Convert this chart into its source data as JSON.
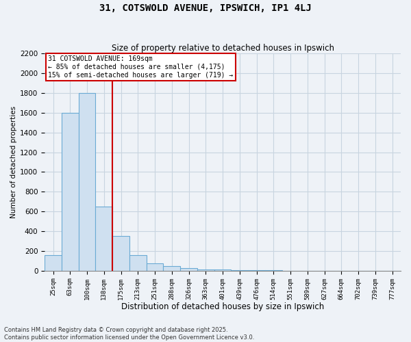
{
  "title": "31, COTSWOLD AVENUE, IPSWICH, IP1 4LJ",
  "subtitle": "Size of property relative to detached houses in Ipswich",
  "xlabel": "Distribution of detached houses by size in Ipswich",
  "ylabel": "Number of detached properties",
  "annotation_title": "31 COTSWOLD AVENUE: 169sqm",
  "annotation_line1": "← 85% of detached houses are smaller (4,175)",
  "annotation_line2": "15% of semi-detached houses are larger (719) →",
  "footer_line1": "Contains HM Land Registry data © Crown copyright and database right 2025.",
  "footer_line2": "Contains public sector information licensed under the Open Government Licence v3.0.",
  "bins": [
    "25sqm",
    "63sqm",
    "100sqm",
    "138sqm",
    "175sqm",
    "213sqm",
    "251sqm",
    "288sqm",
    "326sqm",
    "363sqm",
    "401sqm",
    "439sqm",
    "476sqm",
    "514sqm",
    "551sqm",
    "589sqm",
    "627sqm",
    "664sqm",
    "702sqm",
    "739sqm",
    "777sqm"
  ],
  "values": [
    155,
    1600,
    1800,
    650,
    350,
    155,
    75,
    50,
    25,
    15,
    10,
    6,
    4,
    3,
    2,
    1,
    1,
    1,
    1,
    0,
    0
  ],
  "bar_color": "#cfe0f0",
  "bar_edge_color": "#6aaad4",
  "red_line_color": "#cc0000",
  "annotation_box_color": "#cc0000",
  "background_color": "#eef2f7",
  "grid_color": "#c8d4e0",
  "ylim": [
    0,
    2200
  ],
  "yticks": [
    0,
    200,
    400,
    600,
    800,
    1000,
    1200,
    1400,
    1600,
    1800,
    2000,
    2200
  ],
  "red_line_x": 4.0
}
